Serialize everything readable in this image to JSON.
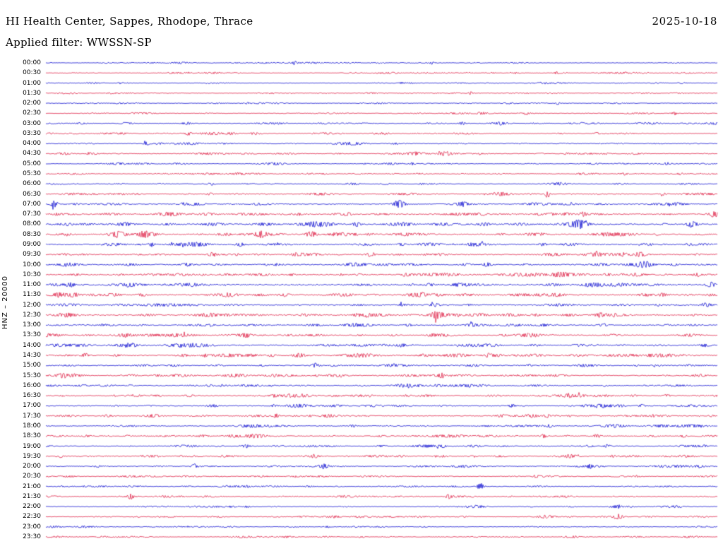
{
  "header": {
    "title": "HI Health Center, Sappes, Rhodope, Thrace",
    "date": "2025-10-18",
    "filter": "Applied filter: WWSSN-SP"
  },
  "chart_data": {
    "type": "line",
    "subtype": "helicorder",
    "title": "HI Health Center, Sappes, Rhodope, Thrace",
    "date": "2025-10-18",
    "filter": "WWSSN-SP",
    "station_scale_label": "HNZ – 20000",
    "channel": "HNZ",
    "scale": 20000,
    "minutes_per_row": 30,
    "x_range_minutes": [
      0,
      30
    ],
    "row_order": "top-to-bottom",
    "grid": false,
    "legend": false,
    "background": "#ffffff",
    "colors": {
      "blue": "#0000CD",
      "red": "#DC143C"
    },
    "events_format": "[x_fraction_of_row, amplitude_px, width_px]",
    "rows": [
      {
        "label": "00:00",
        "color": "blue",
        "noise": 0.5,
        "events": [
          [
            0.37,
            1.8,
            2
          ],
          [
            0.575,
            1.8,
            2
          ]
        ]
      },
      {
        "label": "00:30",
        "color": "red",
        "noise": 0.5,
        "events": [
          [
            0.76,
            1.5,
            2
          ]
        ]
      },
      {
        "label": "01:00",
        "color": "blue",
        "noise": 0.5,
        "events": [
          [
            0.11,
            1.4,
            2
          ],
          [
            0.53,
            1.2,
            2
          ]
        ]
      },
      {
        "label": "01:30",
        "color": "red",
        "noise": 0.5,
        "events": [
          [
            0.633,
            2.2,
            2
          ]
        ]
      },
      {
        "label": "02:00",
        "color": "blue",
        "noise": 0.55,
        "events": [
          [
            0.762,
            1.8,
            2
          ],
          [
            0.3,
            1.2,
            2
          ]
        ]
      },
      {
        "label": "02:30",
        "color": "red",
        "noise": 0.55,
        "events": [
          [
            0.715,
            2.2,
            2
          ],
          [
            0.936,
            2.8,
            2.5
          ]
        ]
      },
      {
        "label": "03:00",
        "color": "blue",
        "noise": 0.7,
        "events": [
          [
            0.12,
            1.5,
            6
          ],
          [
            0.21,
            1.6,
            5
          ],
          [
            0.62,
            1.8,
            3
          ]
        ]
      },
      {
        "label": "03:30",
        "color": "red",
        "noise": 0.7,
        "events": [
          [
            0.212,
            2.6,
            3
          ],
          [
            0.31,
            1.8,
            3
          ],
          [
            0.82,
            1.6,
            3
          ]
        ]
      },
      {
        "label": "04:00",
        "color": "blue",
        "noise": 0.65,
        "events": [
          [
            0.15,
            2.2,
            3
          ],
          [
            0.52,
            1.5,
            3
          ]
        ]
      },
      {
        "label": "04:30",
        "color": "red",
        "noise": 0.7,
        "events": [
          [
            0.063,
            1.5,
            3
          ],
          [
            0.55,
            2.5,
            10
          ],
          [
            0.595,
            2.2,
            6
          ]
        ]
      },
      {
        "label": "05:00",
        "color": "blue",
        "noise": 0.6,
        "events": [
          [
            0.546,
            1.6,
            3
          ],
          [
            0.925,
            1.4,
            3
          ]
        ]
      },
      {
        "label": "05:30",
        "color": "red",
        "noise": 0.65,
        "events": [
          [
            0.86,
            2.0,
            4
          ],
          [
            0.945,
            1.6,
            3
          ]
        ]
      },
      {
        "label": "06:00",
        "color": "blue",
        "noise": 0.6,
        "events": [
          [
            0.247,
            1.4,
            3
          ],
          [
            0.56,
            1.2,
            3
          ]
        ]
      },
      {
        "label": "06:30",
        "color": "red",
        "noise": 0.7,
        "events": [
          [
            0.747,
            7,
            2
          ],
          [
            0.92,
            1.8,
            4
          ],
          [
            0.245,
            1.5,
            3
          ]
        ]
      },
      {
        "label": "07:00",
        "color": "blue",
        "noise": 0.9,
        "events": [
          [
            0.012,
            8,
            3
          ],
          [
            0.526,
            4.5,
            6
          ],
          [
            0.62,
            2.2,
            4
          ],
          [
            0.205,
            1.6,
            3
          ]
        ]
      },
      {
        "label": "07:30",
        "color": "red",
        "noise": 1.1,
        "events": [
          [
            0.8,
            2.8,
            4
          ],
          [
            0.995,
            3.2,
            3
          ],
          [
            0.45,
            1.8,
            4
          ]
        ]
      },
      {
        "label": "08:00",
        "color": "blue",
        "noise": 1.3,
        "events": [
          [
            0.463,
            3,
            4
          ],
          [
            0.794,
            5.5,
            9
          ],
          [
            0.962,
            4.5,
            5
          ],
          [
            0.655,
            2.2,
            4
          ]
        ]
      },
      {
        "label": "08:30",
        "color": "red",
        "noise": 1.2,
        "events": [
          [
            0.105,
            3.5,
            7
          ],
          [
            0.145,
            3.2,
            5
          ],
          [
            0.394,
            3.6,
            5
          ],
          [
            0.32,
            2,
            4
          ]
        ]
      },
      {
        "label": "09:00",
        "color": "blue",
        "noise": 1.1,
        "events": [
          [
            0.158,
            3,
            3
          ],
          [
            0.29,
            2.4,
            5
          ],
          [
            0.74,
            1.8,
            4
          ]
        ]
      },
      {
        "label": "09:30",
        "color": "red",
        "noise": 1.1,
        "events": [
          [
            0.484,
            3,
            4
          ],
          [
            0.883,
            2.4,
            4
          ],
          [
            0.25,
            1.8,
            4
          ]
        ]
      },
      {
        "label": "10:00",
        "color": "blue",
        "noise": 1.2,
        "events": [
          [
            0.657,
            2.4,
            4
          ],
          [
            0.21,
            1.8,
            4
          ]
        ]
      },
      {
        "label": "10:30",
        "color": "red",
        "noise": 1.2,
        "events": [
          [
            0.536,
            2.2,
            4
          ],
          [
            0.88,
            2,
            8
          ],
          [
            0.97,
            2.2,
            5
          ]
        ]
      },
      {
        "label": "11:00",
        "color": "blue",
        "noise": 1.4,
        "events": [
          [
            0.037,
            2.6,
            4
          ],
          [
            0.99,
            2.6,
            4
          ]
        ]
      },
      {
        "label": "11:30",
        "color": "red",
        "noise": 1.3,
        "events": [
          [
            0.042,
            2.6,
            4
          ],
          [
            0.56,
            1.8,
            4
          ]
        ]
      },
      {
        "label": "12:00",
        "color": "blue",
        "noise": 1.1,
        "events": [
          [
            0.58,
            1.8,
            4
          ]
        ]
      },
      {
        "label": "12:30",
        "color": "red",
        "noise": 1.2,
        "events": [
          [
            0.03,
            2.4,
            10
          ],
          [
            0.578,
            1.8,
            4
          ],
          [
            0.845,
            1.8,
            3
          ]
        ]
      },
      {
        "label": "13:00",
        "color": "blue",
        "noise": 1.1,
        "events": [
          [
            0.83,
            2.2,
            3
          ],
          [
            0.54,
            1.6,
            4
          ]
        ]
      },
      {
        "label": "13:30",
        "color": "red",
        "noise": 1.0,
        "events": [
          [
            0.3,
            1.6,
            4
          ],
          [
            0.845,
            1.8,
            3
          ]
        ]
      },
      {
        "label": "14:00",
        "color": "blue",
        "noise": 1.2,
        "events": [
          [
            0.53,
            2,
            5
          ],
          [
            0.13,
            1.6,
            4
          ]
        ]
      },
      {
        "label": "14:30",
        "color": "red",
        "noise": 1.1,
        "events": [
          [
            0.058,
            3.2,
            3
          ],
          [
            0.236,
            2.2,
            3
          ],
          [
            0.336,
            1.8,
            3
          ],
          [
            0.66,
            1.6,
            3
          ]
        ]
      },
      {
        "label": "15:00",
        "color": "blue",
        "noise": 1.0,
        "events": [
          [
            0.4,
            2.2,
            3
          ],
          [
            0.72,
            1.6,
            3
          ]
        ]
      },
      {
        "label": "15:30",
        "color": "red",
        "noise": 1.0,
        "events": [
          [
            0.589,
            3.2,
            3
          ],
          [
            0.34,
            1.6,
            3
          ]
        ]
      },
      {
        "label": "16:00",
        "color": "blue",
        "noise": 1.0,
        "events": [
          [
            0.54,
            1.8,
            4
          ],
          [
            0.245,
            1.6,
            4
          ]
        ]
      },
      {
        "label": "16:30",
        "color": "red",
        "noise": 1.0,
        "events": [
          [
            0.778,
            2.2,
            3
          ],
          [
            0.34,
            1.6,
            3
          ],
          [
            0.925,
            1.8,
            3
          ]
        ]
      },
      {
        "label": "17:00",
        "color": "blue",
        "noise": 1.0,
        "events": [
          [
            0.694,
            2.2,
            3
          ],
          [
            0.888,
            1.8,
            3
          ],
          [
            0.34,
            1.6,
            3
          ]
        ]
      },
      {
        "label": "17:30",
        "color": "red",
        "noise": 0.95,
        "events": [
          [
            0.342,
            1.8,
            3
          ],
          [
            0.747,
            2.2,
            3
          ],
          [
            0.905,
            1.8,
            3
          ]
        ]
      },
      {
        "label": "18:00",
        "color": "blue",
        "noise": 0.9,
        "events": [
          [
            0.457,
            1.8,
            3
          ],
          [
            0.75,
            1.6,
            3
          ]
        ]
      },
      {
        "label": "18:30",
        "color": "red",
        "noise": 0.9,
        "events": [
          [
            0.741,
            2.6,
            3
          ],
          [
            0.82,
            2.2,
            3
          ],
          [
            0.95,
            1.8,
            3
          ]
        ]
      },
      {
        "label": "19:00",
        "color": "blue",
        "noise": 0.85,
        "events": [
          [
            0.836,
            2.2,
            3
          ],
          [
            0.947,
            1.8,
            3
          ],
          [
            0.3,
            1.6,
            3
          ]
        ]
      },
      {
        "label": "19:30",
        "color": "red",
        "noise": 0.8,
        "events": [
          [
            0.021,
            2,
            3
          ],
          [
            0.4,
            1.6,
            3
          ],
          [
            0.845,
            1.8,
            3
          ]
        ]
      },
      {
        "label": "20:00",
        "color": "blue",
        "noise": 0.8,
        "events": [
          [
            0.221,
            2.6,
            3
          ],
          [
            0.415,
            2.6,
            4
          ],
          [
            0.81,
            2.2,
            3
          ]
        ]
      },
      {
        "label": "20:30",
        "color": "red",
        "noise": 0.7,
        "events": [
          [
            0.73,
            1.6,
            3
          ]
        ]
      },
      {
        "label": "21:00",
        "color": "blue",
        "noise": 0.7,
        "events": [
          [
            0.647,
            5,
            3
          ],
          [
            0.3,
            1.4,
            3
          ]
        ]
      },
      {
        "label": "21:30",
        "color": "red",
        "noise": 0.7,
        "events": [
          [
            0.126,
            3.2,
            3
          ],
          [
            0.6,
            2.8,
            3
          ]
        ]
      },
      {
        "label": "22:00",
        "color": "blue",
        "noise": 0.65,
        "events": [
          [
            0.852,
            2.2,
            3
          ],
          [
            0.3,
            1.4,
            3
          ]
        ]
      },
      {
        "label": "22:30",
        "color": "red",
        "noise": 0.6,
        "events": [
          [
            0.852,
            3.6,
            5
          ]
        ]
      },
      {
        "label": "23:00",
        "color": "blue",
        "noise": 0.55,
        "events": [
          [
            0.42,
            1.2,
            3
          ]
        ]
      },
      {
        "label": "23:30",
        "color": "red",
        "noise": 0.55,
        "events": [
          [
            0.47,
            1.4,
            3
          ]
        ]
      }
    ]
  }
}
